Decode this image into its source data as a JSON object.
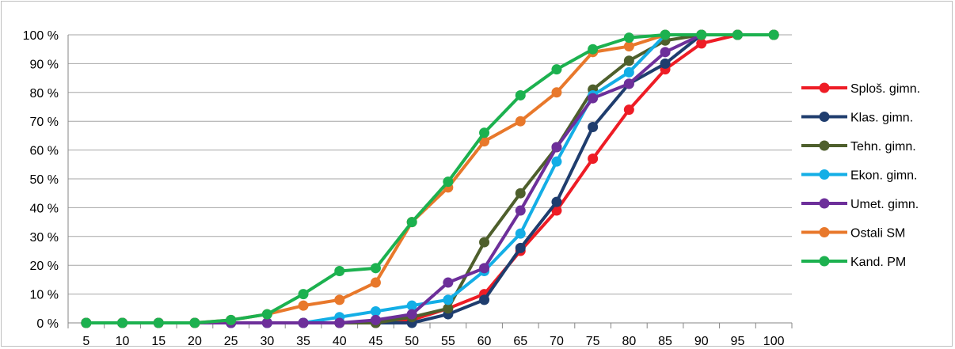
{
  "chart_data": {
    "type": "line",
    "title": "",
    "xlabel": "",
    "ylabel": "",
    "ylim": [
      0,
      100
    ],
    "y_ticks": [
      "0 %",
      "10 %",
      "20 %",
      "30 %",
      "40 %",
      "50 %",
      "60 %",
      "70 %",
      "80 %",
      "90 %",
      "100 %"
    ],
    "x": [
      "5",
      "10",
      "15",
      "20",
      "25",
      "30",
      "35",
      "40",
      "45",
      "50",
      "55",
      "60",
      "65",
      "70",
      "75",
      "80",
      "85",
      "90",
      "95",
      "100"
    ],
    "grid": "horizontal",
    "legend_position": "right",
    "series": [
      {
        "name": "Sploš. gimn.",
        "color": "#ee1c25",
        "values": [
          0,
          0,
          0,
          0,
          0,
          0,
          0,
          0,
          0,
          1,
          5,
          10,
          25,
          39,
          57,
          74,
          88,
          97,
          100,
          100
        ]
      },
      {
        "name": "Klas. gimn.",
        "color": "#1f3d6e",
        "values": [
          0,
          0,
          0,
          0,
          0,
          0,
          0,
          0,
          0,
          0,
          3,
          8,
          26,
          42,
          68,
          83,
          90,
          100,
          100,
          100
        ]
      },
      {
        "name": "Tehn. gimn.",
        "color": "#4e5f2c",
        "values": [
          0,
          0,
          0,
          0,
          0,
          0,
          0,
          0,
          0,
          2,
          5,
          28,
          45,
          61,
          81,
          91,
          98,
          100,
          100,
          100
        ]
      },
      {
        "name": "Ekon. gimn.",
        "color": "#13aee6",
        "values": [
          0,
          0,
          0,
          0,
          0,
          0,
          0,
          2,
          4,
          6,
          8,
          18,
          31,
          56,
          79,
          87,
          100,
          100,
          100,
          100
        ]
      },
      {
        "name": "Umet. gimn.",
        "color": "#6d2f9a",
        "values": [
          0,
          0,
          0,
          0,
          0,
          0,
          0,
          0,
          1,
          3,
          14,
          19,
          39,
          61,
          78,
          83,
          94,
          100,
          100,
          100
        ]
      },
      {
        "name": "Ostali SM",
        "color": "#e8782b",
        "values": [
          0,
          0,
          0,
          0,
          1,
          3,
          6,
          8,
          14,
          35,
          47,
          63,
          70,
          80,
          94,
          96,
          100,
          100,
          100,
          100
        ]
      },
      {
        "name": "Kand. PM",
        "color": "#1cb14f",
        "values": [
          0,
          0,
          0,
          0,
          1,
          3,
          10,
          18,
          19,
          35,
          49,
          66,
          79,
          88,
          95,
          99,
          100,
          100,
          100,
          100
        ]
      }
    ]
  }
}
